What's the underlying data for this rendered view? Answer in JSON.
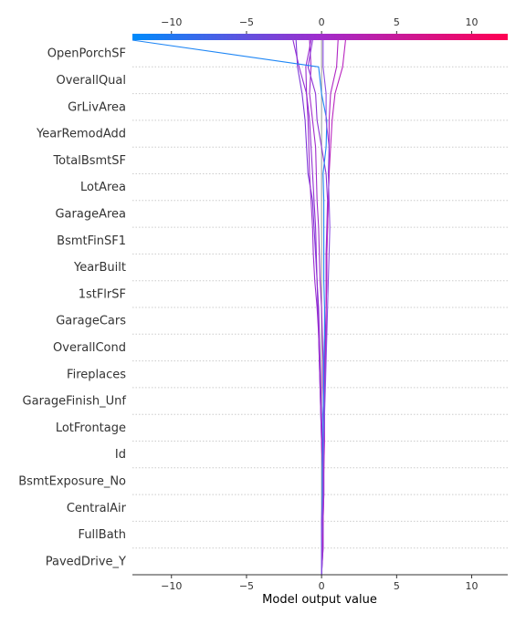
{
  "chart_data": {
    "type": "line",
    "subtype": "shap-decision-plot",
    "title": "",
    "xlabel": "Model output value",
    "ylabel": "",
    "xlim": [
      -12.6,
      12.4
    ],
    "x_ticks": [
      -10,
      -5,
      0,
      5,
      10
    ],
    "x_tick_labels": [
      "−10",
      "−5",
      "0",
      "5",
      "10"
    ],
    "base_value": 0,
    "features": [
      "OpenPorchSF",
      "OverallQual",
      "GrLivArea",
      "YearRemodAdd",
      "TotalBsmtSF",
      "LotArea",
      "GarageArea",
      "BsmtFinSF1",
      "YearBuilt",
      "1stFlrSF",
      "GarageCars",
      "OverallCond",
      "Fireplaces",
      "GarageFinish_Unf",
      "LotFrontage",
      "Id",
      "BsmtExposure_No",
      "CentralAir",
      "FullBath",
      "PavedDrive_Y"
    ],
    "colorbar": {
      "min_color": "#008bfb",
      "mid_color": "#a02ccc",
      "max_color": "#ff0052"
    },
    "gridlines": "dotted",
    "series": [
      {
        "color": "#7d38d8",
        "values": [
          0.0,
          0.0,
          0.0,
          0.05,
          0.05,
          0.0,
          -0.05,
          -0.1,
          -0.15,
          -0.2,
          -0.25,
          -0.3,
          -0.4,
          -0.5,
          -0.6,
          -0.9,
          -1.0,
          -1.1,
          -1.3,
          -1.6,
          -1.7
        ]
      },
      {
        "color": "#932fd3",
        "values": [
          0.0,
          0.05,
          0.05,
          0.05,
          0.05,
          0.05,
          0.0,
          -0.05,
          -0.1,
          -0.15,
          -0.2,
          -0.3,
          -0.35,
          -0.4,
          -0.5,
          -0.6,
          -0.7,
          -0.8,
          -1.0,
          -1.5,
          -1.9
        ]
      },
      {
        "color": "#9b2ed0",
        "values": [
          0.0,
          0.1,
          0.1,
          0.05,
          0.05,
          0.0,
          -0.05,
          -0.1,
          -0.15,
          -0.2,
          -0.3,
          -0.45,
          -0.55,
          -0.6,
          -0.7,
          -0.8,
          -0.85,
          -0.9,
          -1.0,
          -1.05,
          -0.7
        ]
      },
      {
        "color": "#a22dcc",
        "values": [
          0.0,
          0.0,
          0.05,
          0.1,
          0.1,
          0.15,
          0.15,
          0.1,
          0.1,
          0.05,
          0.0,
          -0.1,
          -0.15,
          -0.2,
          -0.3,
          -0.35,
          -0.4,
          -0.6,
          -0.8,
          -0.7,
          -0.8
        ]
      },
      {
        "color": "#8d33d5",
        "values": [
          0.0,
          0.1,
          0.1,
          0.15,
          0.15,
          0.15,
          0.1,
          0.15,
          0.2,
          0.25,
          0.3,
          0.3,
          0.3,
          0.35,
          0.4,
          0.3,
          0.0,
          -0.3,
          -0.4,
          -0.9,
          -0.6
        ]
      },
      {
        "color": "#b026c4",
        "values": [
          0.0,
          0.05,
          0.1,
          0.15,
          0.15,
          0.2,
          0.2,
          0.2,
          0.25,
          0.3,
          0.3,
          0.35,
          0.35,
          0.4,
          0.45,
          0.5,
          0.5,
          0.5,
          0.6,
          1.0,
          1.1
        ]
      },
      {
        "color": "#b924bf",
        "values": [
          0.0,
          0.05,
          0.1,
          0.1,
          0.15,
          0.15,
          0.2,
          0.2,
          0.25,
          0.3,
          0.3,
          0.35,
          0.35,
          0.4,
          0.45,
          0.5,
          0.6,
          0.7,
          0.9,
          1.4,
          1.6
        ]
      },
      {
        "color": "#1e86f5",
        "values": [
          0.0,
          0.0,
          0.05,
          0.05,
          0.05,
          0.1,
          0.1,
          0.15,
          0.15,
          0.2,
          0.2,
          0.15,
          0.15,
          0.15,
          0.15,
          0.1,
          0.3,
          0.35,
          0.0,
          -0.2,
          -12.6
        ]
      },
      {
        "color": "#8b4fe4",
        "values": [
          0.0,
          0.0,
          0.05,
          0.1,
          0.1,
          0.15,
          0.2,
          0.25,
          0.3,
          0.35,
          0.4,
          0.45,
          0.5,
          0.55,
          0.5,
          0.45,
          0.5,
          0.3,
          0.3,
          0.1,
          0.1
        ]
      }
    ]
  }
}
